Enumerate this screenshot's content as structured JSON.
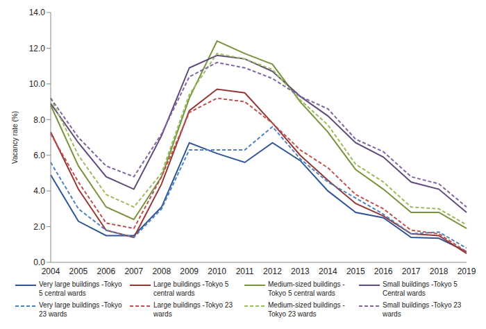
{
  "chart_data": {
    "type": "line",
    "y_label": "Vacancy rate (%)",
    "categories": [
      "2004",
      "2005",
      "2006",
      "2007",
      "2008",
      "2009",
      "2010",
      "2011",
      "2012",
      "2013",
      "2014",
      "2015",
      "2016",
      "2017",
      "2018",
      "2019"
    ],
    "ylim": [
      0,
      14
    ],
    "yticks": [
      {
        "value": 0,
        "label": "0.0"
      },
      {
        "value": 2,
        "label": "2.0"
      },
      {
        "value": 4,
        "label": "4.0"
      },
      {
        "value": 6,
        "label": "6.0"
      },
      {
        "value": 8,
        "label": "8.0"
      },
      {
        "value": 10,
        "label": "10.0"
      },
      {
        "value": 12,
        "label": "12.0"
      },
      {
        "value": 14,
        "label": "14.0"
      }
    ],
    "grid": false,
    "legend": "bottom",
    "series": [
      {
        "name": "Very large buildings -Tokyo 5 central wards",
        "color": "#2f5597",
        "line_style": "solid",
        "values": [
          4.9,
          2.3,
          1.5,
          1.5,
          3.1,
          6.7,
          6.1,
          5.6,
          6.7,
          5.7,
          4.0,
          2.8,
          2.5,
          1.4,
          1.35,
          0.6
        ]
      },
      {
        "name": "Large buildings -Tokyo 5 central wards",
        "color": "#953735",
        "line_style": "solid",
        "values": [
          7.3,
          4.1,
          1.8,
          1.4,
          4.4,
          8.5,
          9.7,
          9.5,
          7.8,
          6.0,
          4.6,
          3.3,
          2.6,
          1.6,
          1.5,
          0.5
        ]
      },
      {
        "name": "Medium-sized buildings -Tokyo 5 central wards",
        "color": "#77933c",
        "line_style": "solid",
        "values": [
          8.8,
          5.4,
          3.1,
          2.4,
          4.8,
          9.2,
          12.4,
          11.7,
          11.1,
          9.0,
          7.3,
          5.2,
          4.1,
          2.8,
          2.8,
          1.9
        ]
      },
      {
        "name": "Small buildings -Tokyo 5 Central wards",
        "color": "#604a7b",
        "line_style": "solid",
        "values": [
          8.9,
          6.7,
          4.8,
          4.1,
          7.1,
          10.9,
          11.6,
          11.4,
          10.7,
          9.3,
          8.2,
          6.7,
          5.9,
          4.5,
          4.1,
          2.8
        ]
      },
      {
        "name": "Very large buildings -Tokyo 23 wards",
        "color": "#4f81bd",
        "line_style": "dashed",
        "values": [
          5.6,
          3.0,
          1.8,
          1.4,
          3.0,
          6.3,
          6.3,
          6.3,
          7.6,
          5.8,
          4.5,
          3.6,
          2.7,
          1.6,
          1.7,
          0.8
        ]
      },
      {
        "name": "Large buildings -Tokyo 23 wards",
        "color": "#c0504d",
        "line_style": "dashed",
        "values": [
          7.2,
          4.5,
          2.2,
          1.9,
          4.8,
          8.4,
          9.2,
          9.0,
          7.8,
          6.3,
          5.3,
          3.8,
          3.0,
          1.8,
          1.6,
          0.6
        ]
      },
      {
        "name": "Medium-sized buildings -Tokyo 23 wards",
        "color": "#9bbb59",
        "line_style": "dashed",
        "values": [
          9.2,
          6.0,
          3.8,
          3.1,
          5.0,
          9.4,
          11.7,
          11.4,
          10.8,
          9.1,
          7.7,
          5.5,
          4.5,
          3.1,
          3.0,
          2.1
        ]
      },
      {
        "name": "Small buildings -Tokyo 23 wards",
        "color": "#8064a2",
        "line_style": "dashed",
        "values": [
          9.2,
          7.0,
          5.4,
          4.8,
          7.2,
          10.4,
          11.2,
          10.9,
          10.3,
          9.3,
          8.6,
          6.9,
          6.2,
          4.8,
          4.4,
          3.1
        ]
      }
    ]
  }
}
